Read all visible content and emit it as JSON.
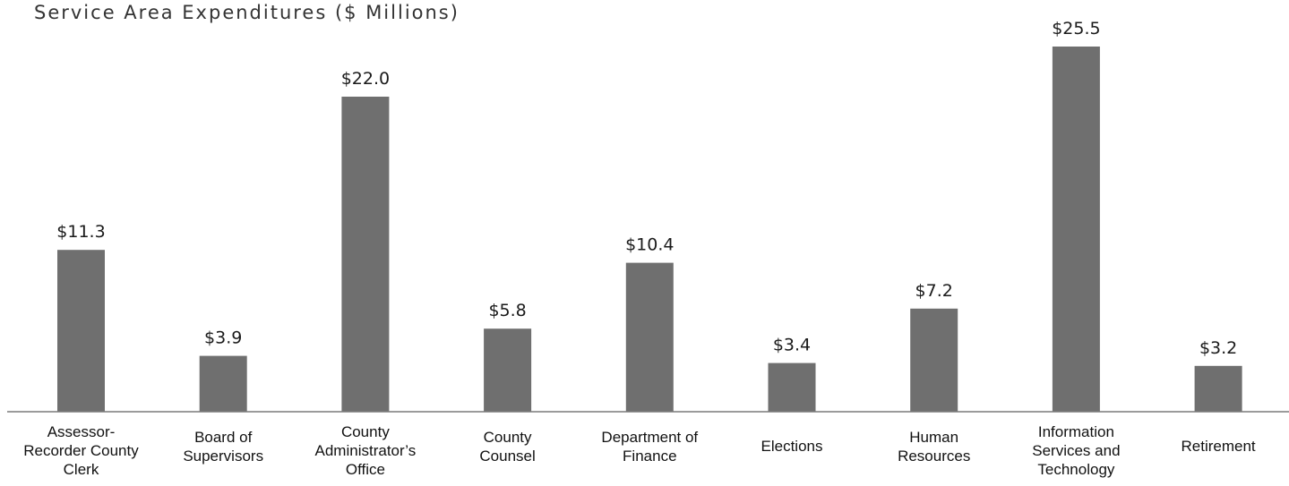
{
  "chart_data": {
    "type": "bar",
    "title": "Service Area Expenditures ($ Millions)",
    "xlabel": "",
    "ylabel": "",
    "ylim": [
      0,
      27
    ],
    "grid": false,
    "legend": "none",
    "bar_color": "#6f6f6f",
    "categories": [
      [
        "Assessor-",
        "Recorder County",
        "Clerk"
      ],
      [
        "Board of",
        "Supervisors"
      ],
      [
        "County",
        "Administrator’s",
        "Office"
      ],
      [
        "County",
        "Counsel"
      ],
      [
        "Department of",
        "Finance"
      ],
      [
        "Elections"
      ],
      [
        "Human",
        "Resources"
      ],
      [
        "Information",
        "Services and",
        "Technology"
      ],
      [
        "Retirement"
      ]
    ],
    "values": [
      11.3,
      3.9,
      22.0,
      5.8,
      10.4,
      3.4,
      7.2,
      25.5,
      3.2
    ],
    "data_labels": [
      "$11.3",
      "$3.9",
      "$22.0",
      "$5.8",
      "$10.4",
      "$3.4",
      "$7.2",
      "$25.5",
      "$3.2"
    ]
  }
}
